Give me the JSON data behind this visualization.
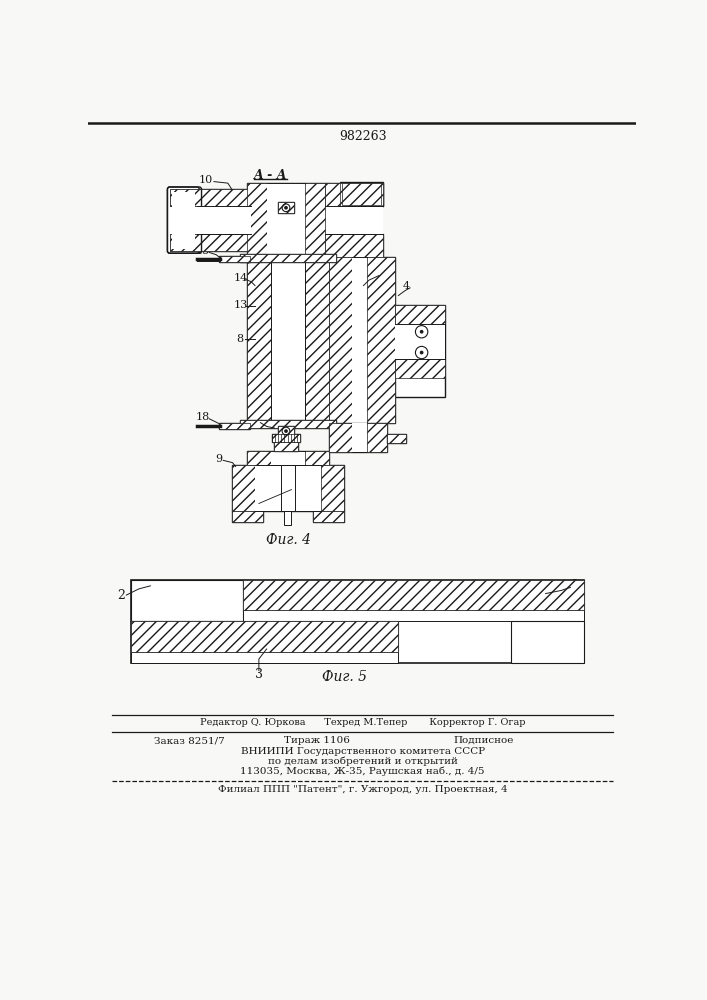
{
  "title": "982263",
  "bg_color": "#f8f8f6",
  "label_A_A": "A - A",
  "fig4_label": "Фиг. 4",
  "fig5_label": "Фиг. 5",
  "footer_line1": "Редактор Q. Юркова      Техред М.Тепер       Корректор Г. Огар",
  "footer_order": "Заказ 8251/7",
  "footer_tirazh": "Тираж 1106",
  "footer_podp": "Подписное",
  "footer_line3": "ВНИИПИ Государственного комитета СССР",
  "footer_line4": "по делам изобретений и открытий",
  "footer_line5": "113035, Москва, Ж-35, Раушская наб., д. 4/5",
  "footer_line6": "Филиал ППП \"Патент\", г. Ужгород, ул. Проектная, 4",
  "lc": "#1a1a1a",
  "wc": "#ffffff",
  "hatch_fc": "#ffffff"
}
